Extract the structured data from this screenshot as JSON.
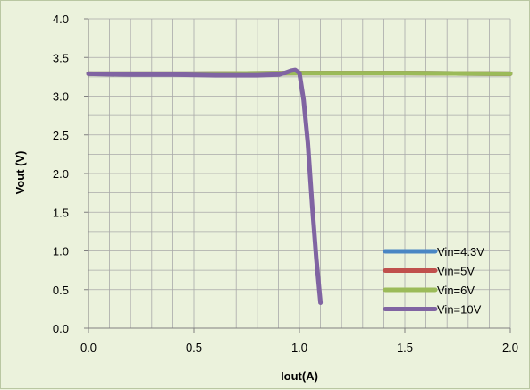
{
  "chart_data": {
    "type": "line",
    "title": "",
    "xlabel": "Iout(A)",
    "ylabel": "Vout (V)",
    "xlim": [
      0,
      2
    ],
    "ylim": [
      0,
      4
    ],
    "x_ticks": [
      "0.0",
      "0.5",
      "1.0",
      "1.5",
      "2.0"
    ],
    "y_ticks": [
      "0.0",
      "0.5",
      "1.0",
      "1.5",
      "2.0",
      "2.5",
      "3.0",
      "3.5",
      "4.0"
    ],
    "x_minor_step": 0.1,
    "y_minor_step": 0.25,
    "grid": true,
    "legend_position": "bottom-right",
    "background": "#ebf2dc",
    "series": [
      {
        "name": "Vin=4.3V",
        "color": "#4a86c4",
        "x": [
          0,
          0.5,
          1.0,
          1.5,
          2.0
        ],
        "y": [
          3.29,
          3.29,
          3.3,
          3.3,
          3.29
        ]
      },
      {
        "name": "Vin=5V",
        "color": "#c0504d",
        "x": [
          0,
          0.5,
          1.0,
          1.5,
          2.0
        ],
        "y": [
          3.29,
          3.29,
          3.3,
          3.3,
          3.29
        ]
      },
      {
        "name": "Vin=6V",
        "color": "#9bbb59",
        "x": [
          0,
          0.5,
          1.0,
          1.5,
          2.0
        ],
        "y": [
          3.29,
          3.29,
          3.3,
          3.3,
          3.29
        ]
      },
      {
        "name": "Vin=10V",
        "color": "#8064a2",
        "x": [
          0,
          0.2,
          0.4,
          0.6,
          0.8,
          0.9,
          0.93,
          0.96,
          0.98,
          1.0,
          1.02,
          1.04,
          1.06,
          1.08,
          1.1
        ],
        "y": [
          3.29,
          3.28,
          3.28,
          3.27,
          3.27,
          3.28,
          3.3,
          3.33,
          3.34,
          3.3,
          2.95,
          2.4,
          1.6,
          0.9,
          0.33
        ]
      }
    ]
  }
}
